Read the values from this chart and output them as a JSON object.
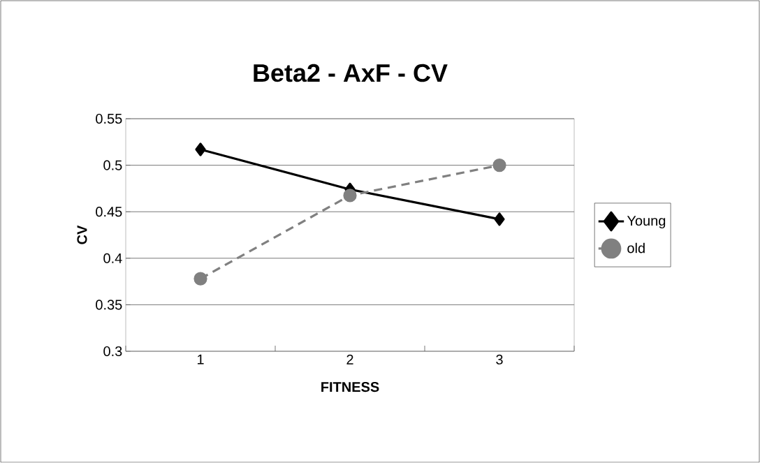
{
  "chart_data": {
    "type": "line",
    "title": "Beta2 - AxF - CV",
    "xlabel": "FITNESS",
    "ylabel": "CV",
    "categories": [
      "1",
      "2",
      "3"
    ],
    "series": [
      {
        "name": "Young",
        "color": "#000000",
        "values": [
          0.517,
          0.474,
          0.442
        ],
        "marker": "diamond",
        "line_style": "solid"
      },
      {
        "name": "old",
        "color": "#808080",
        "values": [
          0.378,
          0.4675,
          0.5
        ],
        "marker": "circle",
        "line_style": "dashed"
      }
    ],
    "ylim": [
      0.3,
      0.55
    ],
    "yticks": [
      0.3,
      0.35,
      0.4,
      0.45,
      0.5,
      0.55
    ],
    "grid": "y",
    "legend": "right"
  }
}
